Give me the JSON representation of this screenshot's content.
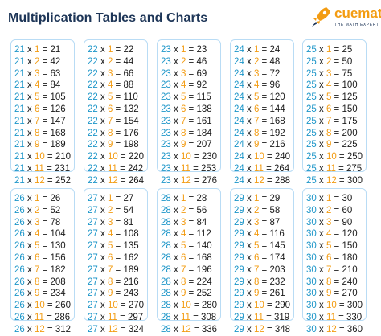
{
  "header": {
    "title": "Multiplication Tables and Charts",
    "brand": "cuemath",
    "brand_tagline": "THE MATH EXPERT"
  },
  "colors": {
    "base": "#1d96c9",
    "multiplier": "#f39c12",
    "card_border": "#b9dcf5",
    "title": "#1d3557"
  },
  "tables": [
    {
      "base": 21,
      "rows": [
        "21 x 1 = 21",
        "21 x 2 = 42",
        "21 x 3 = 63",
        "21 x 4 = 84",
        "21 x 5 = 105",
        "21 x 6 = 126",
        "21 x 7 = 147",
        "21 x 8 = 168",
        "21 x 9 = 189",
        "21 x 10 = 210",
        "21 x 11 = 231",
        "21 x 12 = 252"
      ]
    },
    {
      "base": 22,
      "rows": [
        "22 x 1 = 22",
        "22 x 2 = 44",
        "22 x 3 = 66",
        "22 x 4 = 88",
        "22 x 5 = 110",
        "22 x 6 = 132",
        "22 x 7 = 154",
        "22 x 8 = 176",
        "22 x 9 = 198",
        "22 x 10 = 220",
        "22 x 11 = 242",
        "22 x 12 = 264"
      ]
    },
    {
      "base": 23,
      "rows": [
        "23 x 1 = 23",
        "23 x 2 = 46",
        "23 x 3 = 69",
        "23 x 4 = 92",
        "23 x 5 = 115",
        "23 x 6 = 138",
        "23 x 7 = 161",
        "23 x 8 = 184",
        "23 x 9 = 207",
        "23 x 10 = 230",
        "23 x 11 = 253",
        "23 x 12 = 276"
      ]
    },
    {
      "base": 24,
      "rows": [
        "24 x 1 = 24",
        "24 x 2 = 48",
        "24 x 3 = 72",
        "24 x 4 = 96",
        "24 x 5 = 120",
        "24 x 6 = 144",
        "24 x 7 = 168",
        "24 x 8 = 192",
        "24 x 9 = 216",
        "24 x 10 = 240",
        "24 x 11 = 264",
        "24 x 12 = 288"
      ]
    },
    {
      "base": 25,
      "rows": [
        "25 x 1 = 25",
        "25 x 2 = 50",
        "25 x 3 = 75",
        "25 x 4 = 100",
        "25 x 5 = 125",
        "25 x 6 = 150",
        "25 x 7 = 175",
        "25 x 8 = 200",
        "25 x 9 = 225",
        "25 x 10 = 250",
        "25 x 11 = 275",
        "25 x 12 = 300"
      ]
    },
    {
      "base": 26,
      "rows": [
        "26 x 1 = 26",
        "26 x 2 = 52",
        "26 x 3 = 78",
        "26 x 4 = 104",
        "26 x 5 = 130",
        "26 x 6 = 156",
        "26 x 7 = 182",
        "26 x 8 = 208",
        "26 x 9 = 234",
        "26 x 10 = 260",
        "26 x 11 = 286",
        "26 x 12 = 312"
      ]
    },
    {
      "base": 27,
      "rows": [
        "27 x 1 = 27",
        "27 x 2 = 54",
        "27 x 3 = 81",
        "27 x 4 = 108",
        "27 x 5 = 135",
        "27 x 6 = 162",
        "27 x 7 = 189",
        "27 x 8 = 216",
        "27 x 9 = 243",
        "27 x 10 = 270",
        "27 x 11 = 297",
        "27 x 12 = 324"
      ]
    },
    {
      "base": 28,
      "rows": [
        "28 x 1 = 28",
        "28 x 2 = 56",
        "28 x 3 = 84",
        "28 x 4 = 112",
        "28 x 5 = 140",
        "28 x 6 = 168",
        "28 x 7 = 196",
        "28 x 8 = 224",
        "28 x 9 = 252",
        "28 x 10 = 280",
        "28 x 11 = 308",
        "28 x 12 = 336"
      ]
    },
    {
      "base": 29,
      "rows": [
        "29 x 1 = 29",
        "29 x 2 = 58",
        "29 x 3 = 87",
        "29 x 4 = 116",
        "29 x 5 = 145",
        "29 x 6 = 174",
        "29 x 7 = 203",
        "29 x 8 = 232",
        "29 x 9 = 261",
        "29 x 10 = 290",
        "29 x 11 = 319",
        "29 x 12 = 348"
      ]
    },
    {
      "base": 30,
      "rows": [
        "30 x 1 = 30",
        "30 x 2 = 60",
        "30 x 3 = 90",
        "30 x 4 = 120",
        "30 x 5 = 150",
        "30 x 6 = 180",
        "30 x 7 = 210",
        "30 x 8 = 240",
        "30 x 9 = 270",
        "30 x 10 = 300",
        "30 x 11 = 330",
        "30 x 12 = 360"
      ]
    }
  ]
}
